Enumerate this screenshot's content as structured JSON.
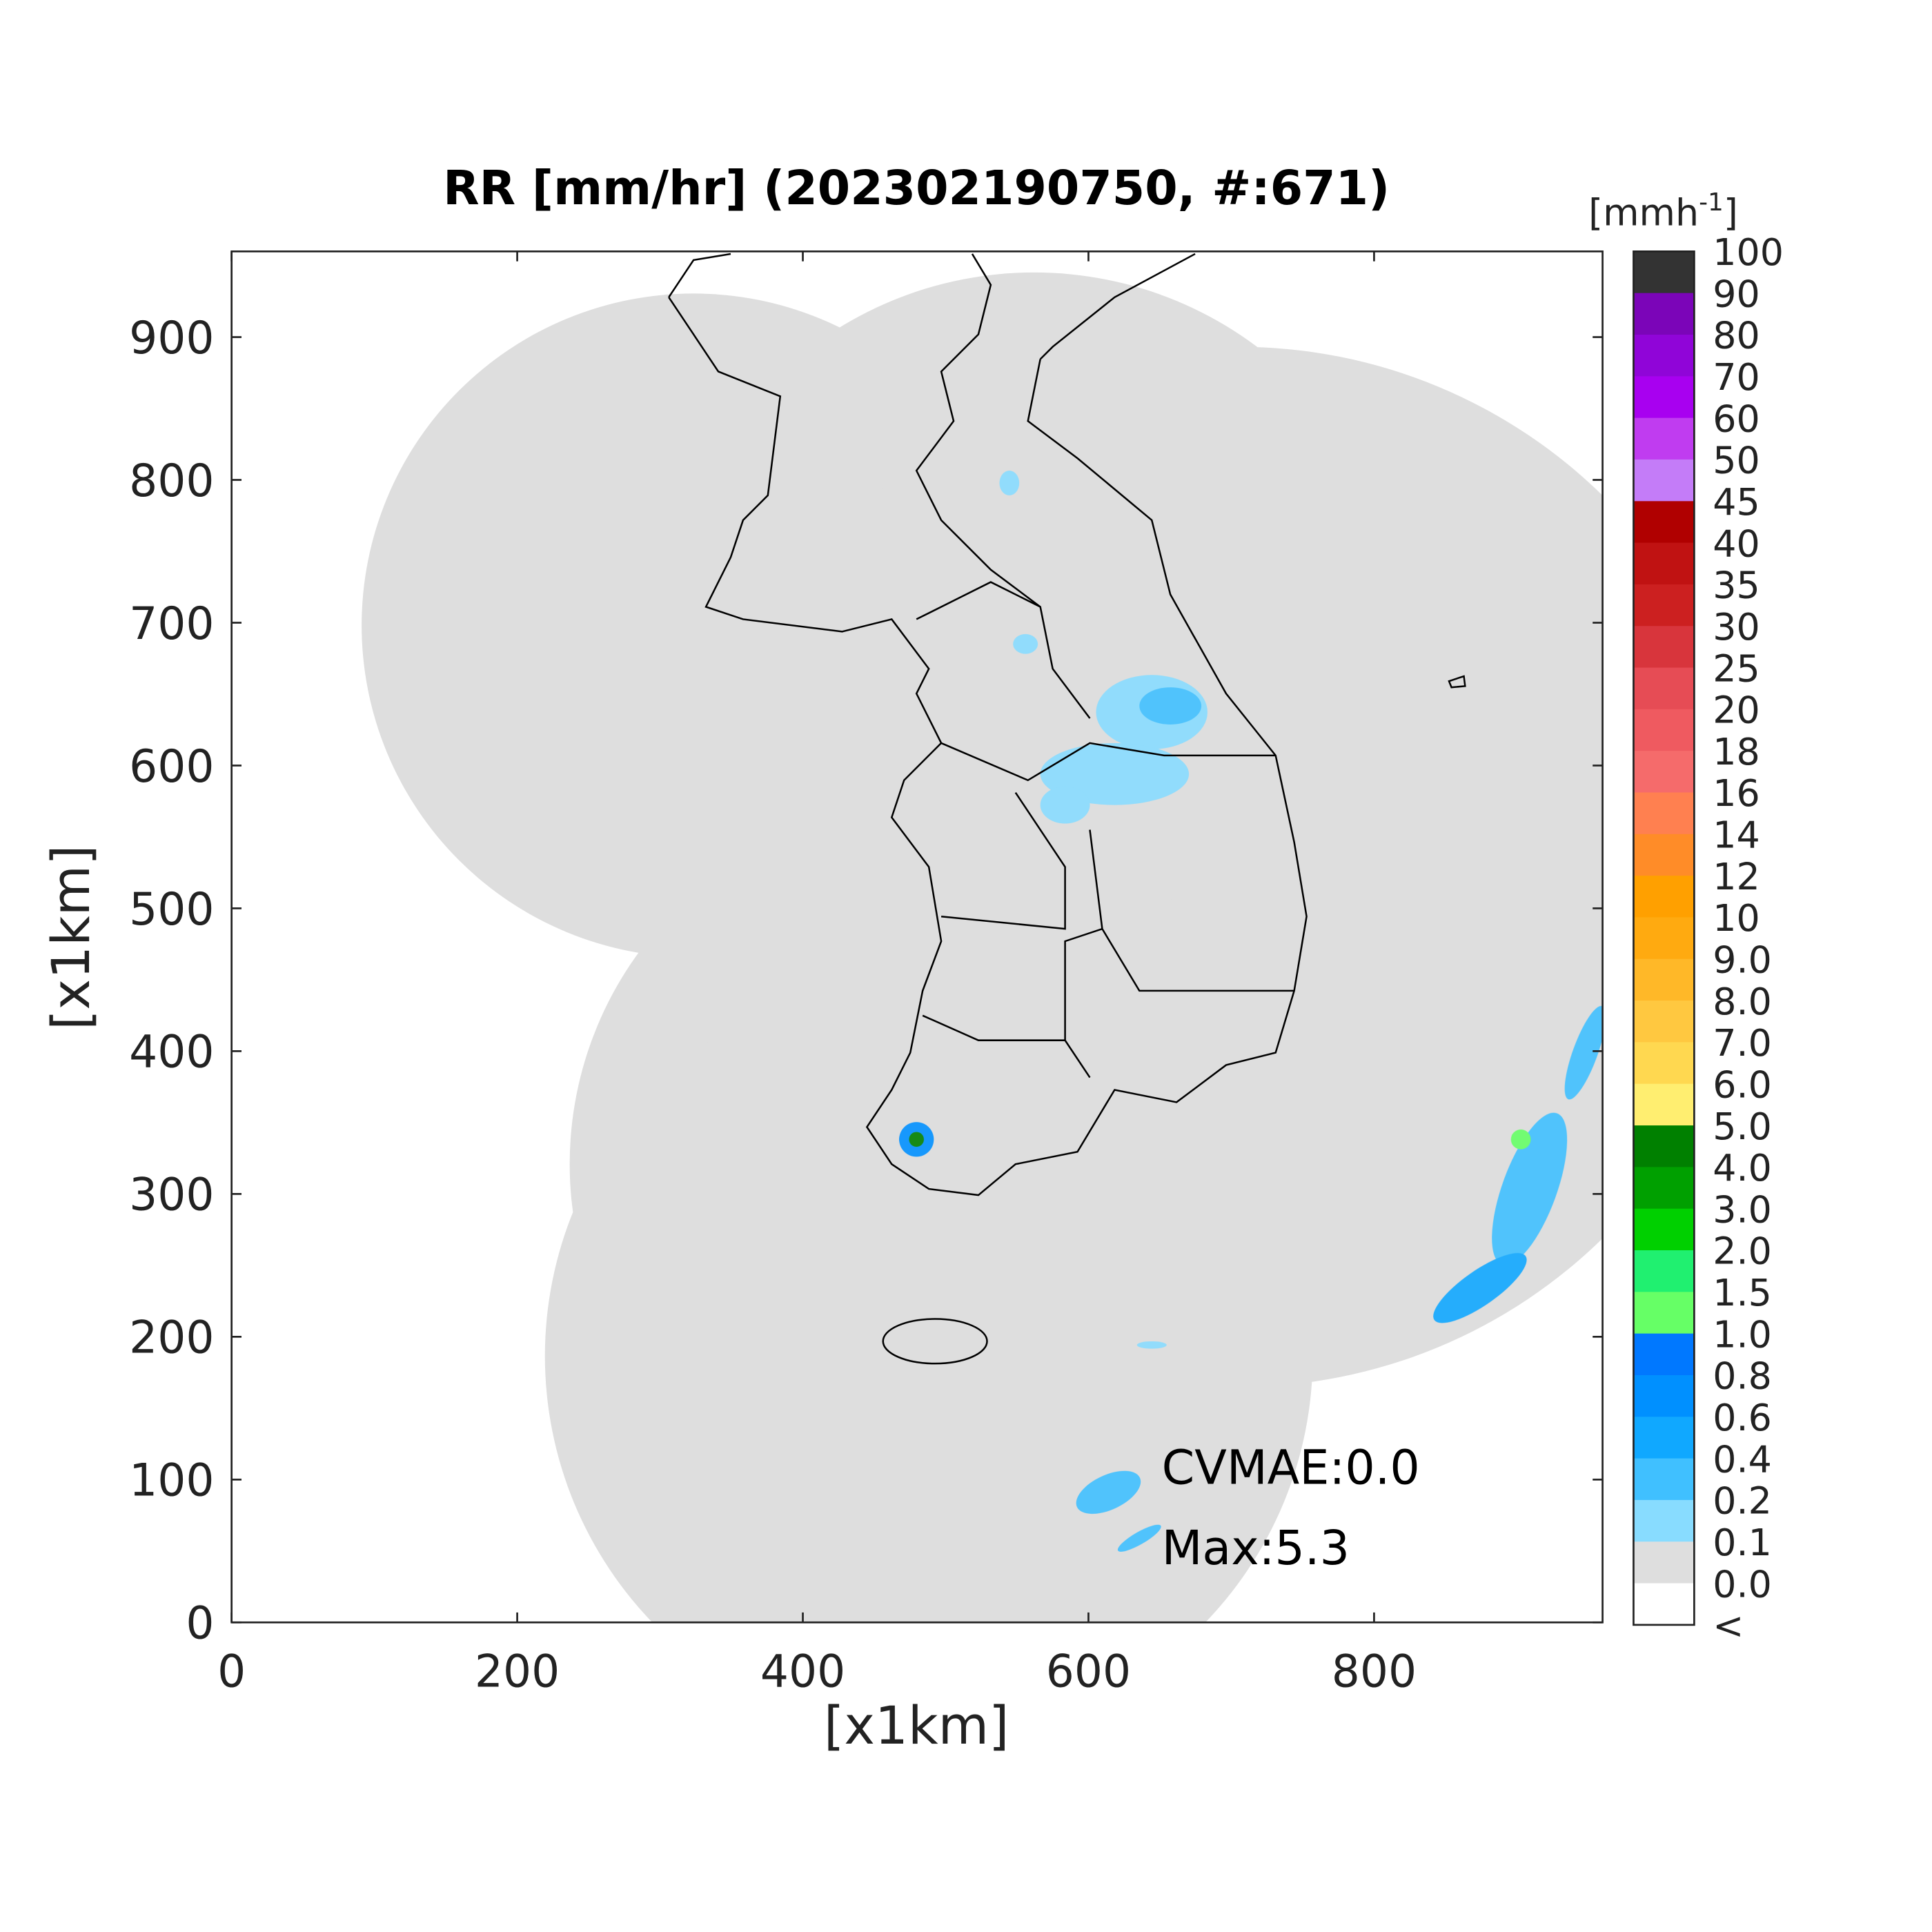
{
  "chart_data": {
    "type": "map",
    "title": "RR [mm/hr] (202302190750, #:671)",
    "x_label": "[x1km]",
    "y_label": "[x1km]",
    "xlim": [
      0,
      960
    ],
    "ylim": [
      0,
      960
    ],
    "xticks": [
      0,
      200,
      400,
      600,
      800
    ],
    "yticks": [
      0,
      100,
      200,
      300,
      400,
      500,
      600,
      700,
      800,
      900
    ],
    "annotations": [
      "CVMAE:0.0",
      "Max:5.3"
    ],
    "colorbar": {
      "title": {
        "base": "[mmh",
        "sup": "-1",
        "close": "]"
      },
      "labels": [
        "100",
        "90",
        "80",
        "70",
        "60",
        "50",
        "45",
        "40",
        "35",
        "30",
        "25",
        "20",
        "18",
        "16",
        "14",
        "12",
        "10",
        "9.0",
        "8.0",
        "7.0",
        "6.0",
        "5.0",
        "4.0",
        "3.0",
        "2.0",
        "1.5",
        "1.0",
        "0.8",
        "0.6",
        "0.4",
        "0.2",
        "0.1",
        "0.0",
        "<"
      ],
      "colors": [
        "#333333",
        "#7b05b8",
        "#9005d8",
        "#a800f0",
        "#c03cf0",
        "#c47cf8",
        "#b00000",
        "#c01212",
        "#cc2020",
        "#d8353c",
        "#e64c55",
        "#ef5a60",
        "#f56b6b",
        "#ff8050",
        "#ff8c28",
        "#ffa000",
        "#ffaa10",
        "#ffb828",
        "#ffc840",
        "#ffd850",
        "#ffee70",
        "#008000",
        "#00a000",
        "#00d000",
        "#20f070",
        "#66ff66",
        "#0078ff",
        "#0090ff",
        "#10a8ff",
        "#40c0ff",
        "#88dcff",
        "#dedede",
        "#ffffff"
      ]
    }
  }
}
